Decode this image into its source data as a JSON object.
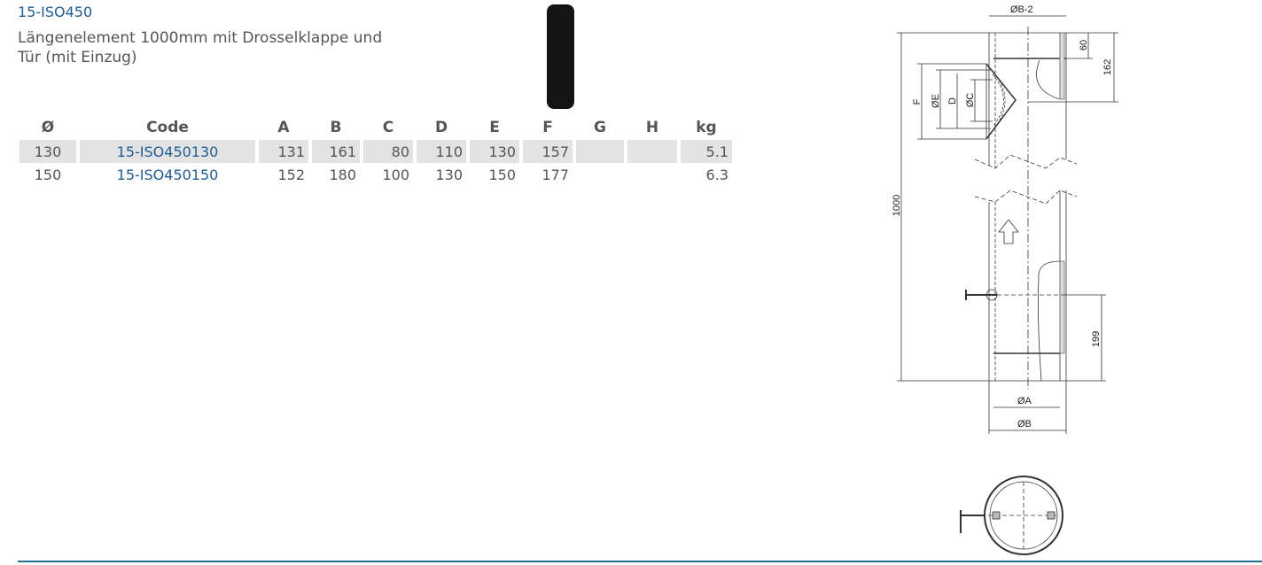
{
  "product": {
    "code": "15-ISO450",
    "description": "Längenelement 1000mm mit Drosselklappe und Tür (mit Einzug)"
  },
  "table": {
    "headers": [
      "Ø",
      "Code",
      "A",
      "B",
      "C",
      "D",
      "E",
      "F",
      "G",
      "H",
      "kg"
    ],
    "rows": [
      [
        "130",
        "15-ISO450130",
        "131",
        "161",
        "80",
        "110",
        "130",
        "157",
        "",
        "",
        "5.1"
      ],
      [
        "150",
        "15-ISO450150",
        "152",
        "180",
        "100",
        "130",
        "150",
        "177",
        "",
        "",
        "6.3"
      ]
    ]
  },
  "drawing": {
    "labels": {
      "b2": "ØB-2",
      "a": "ØA",
      "b": "ØB",
      "f": "F",
      "e": "ØE",
      "d": "D",
      "c": "ØC",
      "l1000": "1000",
      "l60": "60",
      "l162": "162",
      "l199": "199"
    }
  },
  "colors": {
    "accent": "#1f5c94",
    "row_bg": "#e3e3e3",
    "rule": "#2b6e8f"
  }
}
